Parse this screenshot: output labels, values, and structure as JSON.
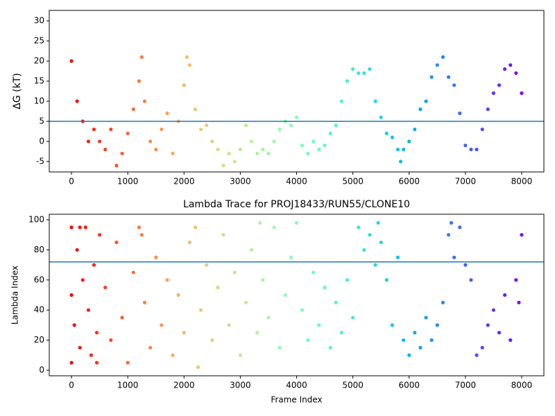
{
  "chart_data": [
    {
      "type": "scatter",
      "ylabel": "ΔG (kT)",
      "colormap": "rainbow_r",
      "hline": 5,
      "hline_color": "#1f77b4",
      "xlim": [
        -395,
        8395
      ],
      "xticks": [
        0,
        1000,
        2000,
        3000,
        4000,
        5000,
        6000,
        7000,
        8000
      ],
      "ylim": [
        -7.6,
        32.6
      ],
      "yticks": [
        -5,
        0,
        5,
        10,
        15,
        20,
        25,
        30
      ],
      "x": [
        0,
        100,
        200,
        300,
        400,
        500,
        600,
        700,
        800,
        900,
        1000,
        1100,
        1200,
        1250,
        1300,
        1400,
        1500,
        1600,
        1700,
        1800,
        1900,
        2000,
        2050,
        2100,
        2200,
        2300,
        2400,
        2500,
        2600,
        2700,
        2800,
        2900,
        3000,
        3100,
        3200,
        3300,
        3400,
        3500,
        3600,
        3700,
        3800,
        3900,
        4000,
        4100,
        4200,
        4300,
        4400,
        4500,
        4600,
        4700,
        4800,
        4900,
        5000,
        5100,
        5200,
        5300,
        5400,
        5500,
        5600,
        5700,
        5800,
        5850,
        5900,
        6000,
        6100,
        6200,
        6300,
        6400,
        6500,
        6600,
        6700,
        6800,
        6900,
        7000,
        7100,
        7200,
        7300,
        7400,
        7500,
        7600,
        7700,
        7800,
        7900,
        8000
      ],
      "y": [
        20,
        10,
        5,
        0,
        3,
        0,
        -2,
        3,
        -6,
        -3,
        2,
        8,
        15,
        21,
        10,
        0,
        -2,
        3,
        7,
        -3,
        5,
        14,
        21,
        19,
        8,
        3,
        4,
        0,
        -2,
        -6,
        -3,
        -5,
        -2,
        4,
        0,
        -3,
        -2,
        -3,
        0,
        3,
        5,
        4,
        6,
        -1,
        -3,
        0,
        -2,
        -1,
        2,
        4,
        10,
        15,
        18,
        17,
        17,
        18,
        10,
        6,
        2,
        1,
        -2,
        -5,
        -2,
        0,
        3,
        8,
        10,
        16,
        19,
        21,
        16,
        14,
        7,
        -1,
        -2,
        -2,
        3,
        8,
        12,
        14,
        18,
        19,
        17,
        12
      ]
    },
    {
      "type": "scatter",
      "title": "Lambda Trace for PROJ18433/RUN55/CLONE10",
      "xlabel": "Frame Index",
      "ylabel": "Lambda Index",
      "colormap": "rainbow_r",
      "hline": 72,
      "hline_color": "#1f77b4",
      "xlim": [
        -395,
        8395
      ],
      "xticks": [
        0,
        1000,
        2000,
        3000,
        4000,
        5000,
        6000,
        7000,
        8000
      ],
      "ylim": [
        -3.7,
        103.7
      ],
      "yticks": [
        0,
        20,
        40,
        60,
        80,
        100
      ],
      "x": [
        0,
        0,
        0,
        50,
        100,
        150,
        200,
        250,
        300,
        350,
        400,
        450,
        500,
        600,
        700,
        800,
        900,
        1000,
        1100,
        1200,
        1300,
        1400,
        1500,
        1600,
        1700,
        1800,
        1900,
        2000,
        2100,
        2200,
        2300,
        2400,
        2500,
        2600,
        2700,
        2800,
        2900,
        3000,
        3100,
        3200,
        3300,
        3400,
        3500,
        3600,
        3700,
        3800,
        3900,
        4000,
        4100,
        4200,
        4300,
        4400,
        4500,
        4600,
        4700,
        4800,
        4900,
        5000,
        5100,
        5200,
        5300,
        5400,
        5500,
        5600,
        5700,
        5800,
        5900,
        6000,
        6100,
        6200,
        6300,
        6400,
        6500,
        6600,
        6700,
        6800,
        6900,
        7000,
        7100,
        7200,
        7300,
        7400,
        7500,
        7600,
        7700,
        7800,
        7900,
        8000,
        150,
        450,
        1250,
        2250,
        3350,
        5450,
        6750,
        7950
      ],
      "y": [
        5,
        50,
        95,
        30,
        80,
        15,
        60,
        95,
        40,
        10,
        70,
        25,
        90,
        55,
        20,
        85,
        35,
        5,
        65,
        95,
        45,
        15,
        75,
        30,
        60,
        10,
        50,
        25,
        85,
        95,
        40,
        70,
        20,
        55,
        90,
        30,
        65,
        10,
        45,
        80,
        25,
        60,
        35,
        95,
        15,
        50,
        75,
        98,
        40,
        20,
        65,
        30,
        55,
        15,
        45,
        25,
        60,
        35,
        95,
        80,
        90,
        70,
        85,
        60,
        30,
        75,
        20,
        10,
        25,
        15,
        35,
        20,
        30,
        45,
        90,
        75,
        95,
        70,
        60,
        10,
        15,
        30,
        40,
        25,
        50,
        20,
        60,
        90,
        95,
        5,
        90,
        2,
        98,
        98,
        98,
        45
      ]
    }
  ]
}
